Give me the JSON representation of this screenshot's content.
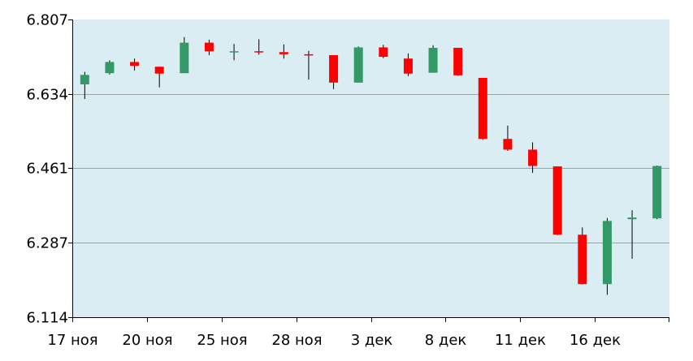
{
  "chart_data": {
    "type": "candlestick",
    "y_ticks": [
      "6.807",
      "6.634",
      "6.461",
      "6.287",
      "6.114"
    ],
    "ylim": [
      6.114,
      6.807
    ],
    "x_tick_labels": [
      {
        "index": 0,
        "label": "17 ноя"
      },
      {
        "index": 3,
        "label": "20 ноя"
      },
      {
        "index": 6,
        "label": "25 ноя"
      },
      {
        "index": 9,
        "label": "28 ноя"
      },
      {
        "index": 12,
        "label": "3 дек"
      },
      {
        "index": 15,
        "label": "8 дек"
      },
      {
        "index": 18,
        "label": "11 дек"
      },
      {
        "index": 21,
        "label": "16 дек"
      }
    ],
    "grid": true,
    "colors": {
      "up": "#339966",
      "down": "#ff0000",
      "plot_bg": "#daedf2",
      "grid": "#a0a0a0",
      "axis": "#000000"
    },
    "candles": [
      {
        "open": 6.656,
        "high": 6.685,
        "low": 6.622,
        "close": 6.678
      },
      {
        "open": 6.682,
        "high": 6.712,
        "low": 6.679,
        "close": 6.708
      },
      {
        "open": 6.708,
        "high": 6.716,
        "low": 6.688,
        "close": 6.699
      },
      {
        "open": 6.697,
        "high": 6.697,
        "low": 6.649,
        "close": 6.681
      },
      {
        "open": 6.682,
        "high": 6.766,
        "low": 6.682,
        "close": 6.753
      },
      {
        "open": 6.753,
        "high": 6.76,
        "low": 6.724,
        "close": 6.733
      },
      {
        "open": 6.733,
        "high": 6.75,
        "low": 6.712,
        "close": 6.733
      },
      {
        "open": 6.733,
        "high": 6.761,
        "low": 6.725,
        "close": 6.731
      },
      {
        "open": 6.731,
        "high": 6.749,
        "low": 6.716,
        "close": 6.726
      },
      {
        "open": 6.726,
        "high": 6.734,
        "low": 6.667,
        "close": 6.724
      },
      {
        "open": 6.724,
        "high": 6.724,
        "low": 6.645,
        "close": 6.66
      },
      {
        "open": 6.66,
        "high": 6.744,
        "low": 6.66,
        "close": 6.742
      },
      {
        "open": 6.742,
        "high": 6.748,
        "low": 6.717,
        "close": 6.72
      },
      {
        "open": 6.716,
        "high": 6.728,
        "low": 6.675,
        "close": 6.681
      },
      {
        "open": 6.683,
        "high": 6.747,
        "low": 6.683,
        "close": 6.741
      },
      {
        "open": 6.741,
        "high": 6.741,
        "low": 6.676,
        "close": 6.677
      },
      {
        "open": 6.671,
        "high": 6.671,
        "low": 6.527,
        "close": 6.529
      },
      {
        "open": 6.529,
        "high": 6.56,
        "low": 6.501,
        "close": 6.504
      },
      {
        "open": 6.504,
        "high": 6.521,
        "low": 6.45,
        "close": 6.466
      },
      {
        "open": 6.465,
        "high": 6.465,
        "low": 6.305,
        "close": 6.306
      },
      {
        "open": 6.306,
        "high": 6.323,
        "low": 6.19,
        "close": 6.191
      },
      {
        "open": 6.191,
        "high": 6.345,
        "low": 6.166,
        "close": 6.338
      },
      {
        "open": 6.342,
        "high": 6.363,
        "low": 6.25,
        "close": 6.346
      },
      {
        "open": 6.344,
        "high": 6.467,
        "low": 6.342,
        "close": 6.466
      }
    ]
  }
}
